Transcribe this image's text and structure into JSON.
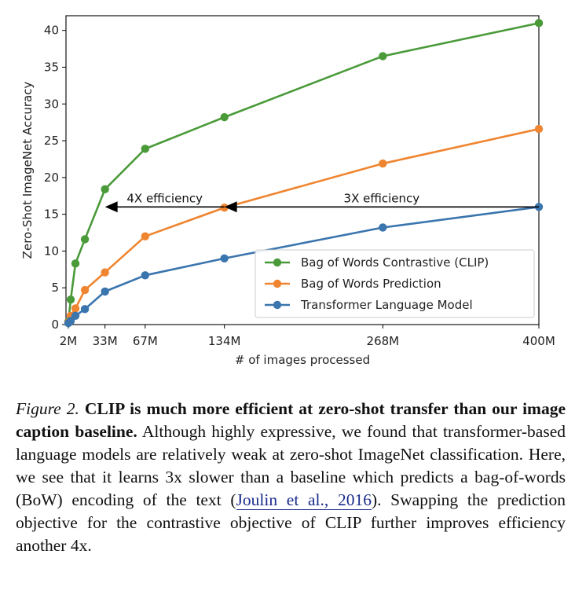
{
  "chart_data": {
    "type": "line",
    "xlabel": "# of images processed",
    "ylabel": "Zero-Shot ImageNet Accuracy",
    "xlim": [
      0,
      400
    ],
    "ylim": [
      0,
      42
    ],
    "x_ticks": [
      {
        "value": 2,
        "label": "2M"
      },
      {
        "value": 33,
        "label": "33M"
      },
      {
        "value": 67,
        "label": "67M"
      },
      {
        "value": 134,
        "label": "134M"
      },
      {
        "value": 268,
        "label": "268M"
      },
      {
        "value": 400,
        "label": "400M"
      }
    ],
    "y_ticks": [
      0,
      5,
      10,
      15,
      20,
      25,
      30,
      35,
      40
    ],
    "grid": false,
    "legend_position": "lower-right",
    "series": [
      {
        "name": "Bag of Words Contrastive (CLIP)",
        "color": "#4a9a3a",
        "points": [
          [
            2,
            0.4
          ],
          [
            4,
            3.4
          ],
          [
            8,
            8.3
          ],
          [
            16,
            11.6
          ],
          [
            33,
            18.4
          ],
          [
            67,
            23.9
          ],
          [
            134,
            28.2
          ],
          [
            268,
            36.5
          ],
          [
            400,
            41.0
          ]
        ]
      },
      {
        "name": "Bag of Words Prediction",
        "color": "#ef8530",
        "points": [
          [
            2,
            0.3
          ],
          [
            4,
            1.2
          ],
          [
            8,
            2.2
          ],
          [
            16,
            4.7
          ],
          [
            33,
            7.1
          ],
          [
            67,
            12.0
          ],
          [
            134,
            15.9
          ],
          [
            268,
            21.9
          ],
          [
            400,
            26.6
          ]
        ]
      },
      {
        "name": "Transformer Language Model",
        "color": "#3a75ae",
        "points": [
          [
            2,
            0.2
          ],
          [
            4,
            0.5
          ],
          [
            8,
            1.2
          ],
          [
            16,
            2.1
          ],
          [
            33,
            4.5
          ],
          [
            67,
            6.7
          ],
          [
            134,
            9.0
          ],
          [
            268,
            13.2
          ],
          [
            400,
            16.0
          ]
        ]
      }
    ],
    "annotations": [
      {
        "text": "4X efficiency",
        "from": [
          134,
          16.0
        ],
        "to": [
          33,
          16.0
        ]
      },
      {
        "text": "3X efficiency",
        "from": [
          400,
          16.0
        ],
        "to": [
          134,
          16.0
        ]
      }
    ]
  },
  "caption": {
    "label": "Figure 2.",
    "bold": "CLIP is much more efficient at zero-shot transfer than our image caption baseline.",
    "text1": "Although highly expressive, we found that transformer-based language models are relatively weak at zero-shot ImageNet classification. Here, we see that it learns 3x slower than a baseline which predicts a bag-of-words (BoW) encoding of the text (",
    "citation": "Joulin et al., 2016",
    "text2": "). Swapping the prediction objective for the contrastive objective of CLIP further improves efficiency another 4x."
  }
}
